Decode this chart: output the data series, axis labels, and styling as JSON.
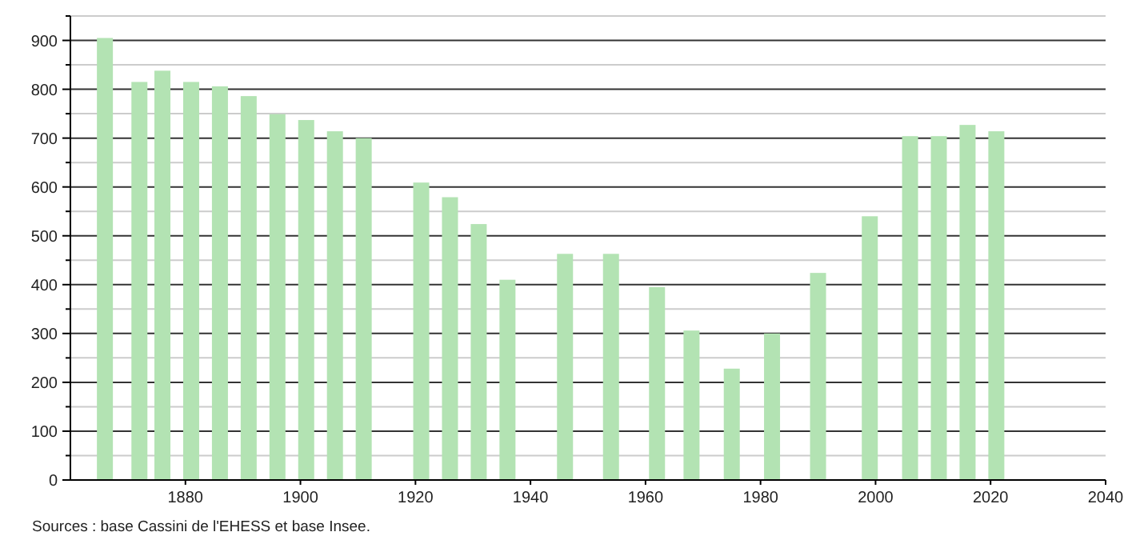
{
  "chart_data": {
    "type": "bar",
    "color": "#b3e3b3",
    "x": [
      1866,
      1872,
      1876,
      1881,
      1886,
      1891,
      1896,
      1901,
      1906,
      1911,
      1921,
      1926,
      1931,
      1936,
      1946,
      1954,
      1962,
      1968,
      1975,
      1982,
      1990,
      1999,
      2006,
      2011,
      2016,
      2021
    ],
    "values": [
      905,
      815,
      838,
      815,
      806,
      786,
      749,
      737,
      714,
      700,
      609,
      579,
      524,
      410,
      463,
      463,
      395,
      306,
      228,
      300,
      424,
      540,
      704,
      704,
      727,
      714
    ],
    "xlim": [
      1860,
      2040
    ],
    "xticks": [
      1880,
      1900,
      1920,
      1940,
      1960,
      1980,
      2000,
      2020,
      2040
    ],
    "ylim": [
      0,
      950
    ],
    "yticks": [
      0,
      {
        "value": 50,
        "label": null
      },
      100,
      {
        "value": 150,
        "label": null
      },
      200,
      {
        "value": 250,
        "label": null
      },
      300,
      {
        "value": 350,
        "label": null
      },
      400,
      {
        "value": 450,
        "label": null
      },
      500,
      {
        "value": 550,
        "label": null
      },
      600,
      {
        "value": 650,
        "label": null
      },
      700,
      {
        "value": 750,
        "label": null
      },
      800,
      {
        "value": 850,
        "label": null
      },
      900,
      {
        "value": 950,
        "label": null
      }
    ],
    "grid": true,
    "annotations": [
      "Sources : base Cassini de l'EHESS et base Insee."
    ]
  }
}
